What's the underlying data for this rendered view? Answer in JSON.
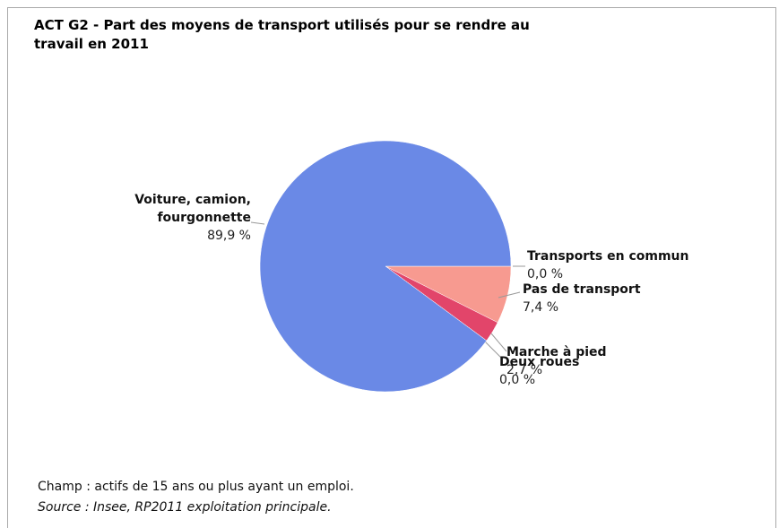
{
  "chart_data": {
    "type": "pie",
    "title": "ACT G2 - Part des moyens de transport utilisés pour se rendre au travail en 2011",
    "categories": [
      "Transports en commun",
      "Pas de transport",
      "Marche à pied",
      "Deux roues",
      "Voiture, camion, fourgonnette"
    ],
    "values": [
      0.0,
      7.4,
      2.7,
      0.0,
      89.9
    ],
    "value_labels": [
      "0,0 %",
      "7,4 %",
      "2,7 %",
      "0,0 %",
      "89,9 %"
    ],
    "colors": [
      "#8fb0d8",
      "#f79a90",
      "#e2456a",
      "#c9a040",
      "#6a89e6"
    ]
  },
  "notes": {
    "champ": "Champ : actifs de 15 ans ou plus ayant un emploi.",
    "source": "Source : Insee, RP2011 exploitation principale."
  }
}
